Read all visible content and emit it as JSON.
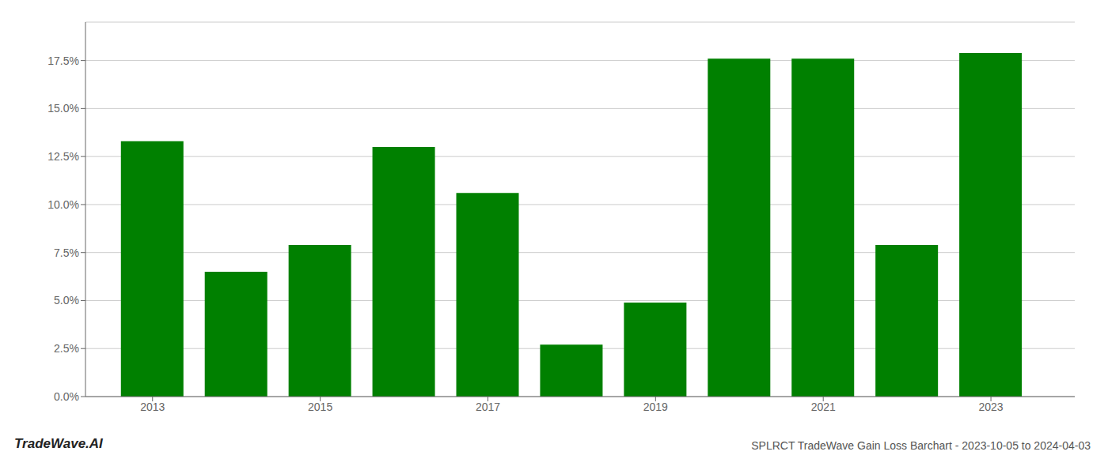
{
  "chart_data": {
    "type": "bar",
    "title": "SPLRCT TradeWave Gain Loss Barchart - 2023-10-05 to 2024-04-03",
    "annotations": [
      "TradeWave.AI"
    ],
    "x": [
      2013,
      2014,
      2015,
      2016,
      2017,
      2018,
      2019,
      2020,
      2021,
      2022,
      2023
    ],
    "values": [
      0.133,
      0.065,
      0.079,
      0.13,
      0.106,
      0.027,
      0.049,
      0.176,
      0.176,
      0.079,
      0.179
    ],
    "color": "#008000",
    "xlim": [
      2012.2,
      2024.0
    ],
    "xticks": [
      2013,
      2015,
      2017,
      2019,
      2021,
      2023
    ],
    "ylim": [
      0,
      0.195
    ],
    "yticks": [
      {
        "value": 0.0,
        "label": "0.0%"
      },
      {
        "value": 0.025,
        "label": "2.5%"
      },
      {
        "value": 0.05,
        "label": "5.0%"
      },
      {
        "value": 0.075,
        "label": "7.5%"
      },
      {
        "value": 0.1,
        "label": "10.0%"
      },
      {
        "value": 0.125,
        "label": "12.5%"
      },
      {
        "value": 0.15,
        "label": "15.0%"
      },
      {
        "value": 0.175,
        "label": "17.5%"
      }
    ],
    "grid": true
  }
}
